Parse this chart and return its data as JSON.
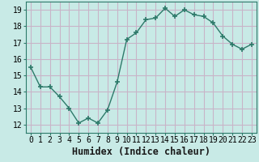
{
  "x": [
    0,
    1,
    2,
    3,
    4,
    5,
    6,
    7,
    8,
    9,
    10,
    11,
    12,
    13,
    14,
    15,
    16,
    17,
    18,
    19,
    20,
    21,
    22,
    23
  ],
  "y": [
    15.5,
    14.3,
    14.3,
    13.7,
    13.0,
    12.1,
    12.4,
    12.1,
    12.9,
    14.6,
    17.2,
    17.6,
    18.4,
    18.5,
    19.1,
    18.6,
    19.0,
    18.7,
    18.6,
    18.2,
    17.4,
    16.9,
    16.6,
    16.9
  ],
  "line_color": "#2d7a6a",
  "marker": "+",
  "bg_color": "#c8eae6",
  "grid_color": "#c8b4c8",
  "title": "",
  "xlabel": "Humidex (Indice chaleur)",
  "ylabel": "",
  "xlim": [
    -0.5,
    23.5
  ],
  "ylim": [
    11.5,
    19.5
  ],
  "yticks": [
    12,
    13,
    14,
    15,
    16,
    17,
    18,
    19
  ],
  "xtick_labels": [
    "0",
    "1",
    "2",
    "3",
    "4",
    "5",
    "6",
    "7",
    "8",
    "9",
    "10",
    "11",
    "12",
    "13",
    "14",
    "15",
    "16",
    "17",
    "18",
    "19",
    "20",
    "21",
    "22",
    "23"
  ],
  "xlabel_fontsize": 8.5,
  "tick_fontsize": 7.0
}
